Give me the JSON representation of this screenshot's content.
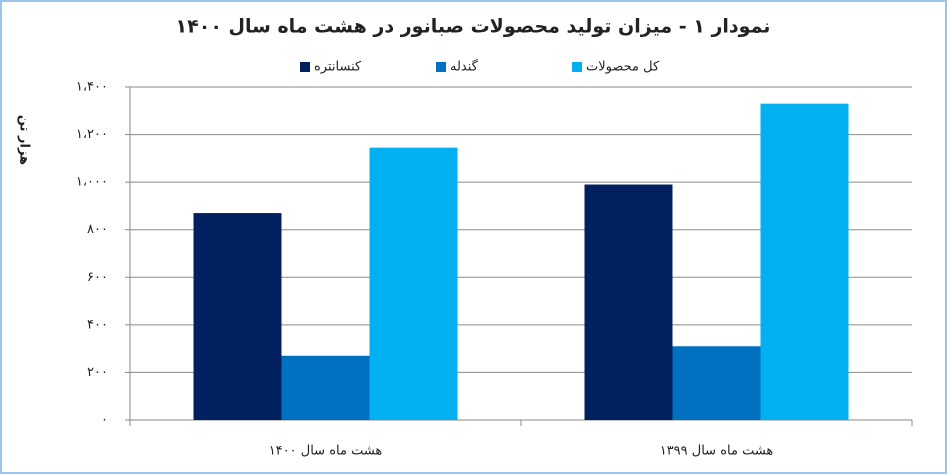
{
  "chart_data": {
    "type": "bar",
    "title": "نمودار ۱ - میزان تولید محصولات صبانور در هشت ماه سال ۱۴۰۰",
    "y_label": "هزار تن",
    "categories": [
      "هشت ماه سال ۱۴۰۰",
      "هشت ماه سال ۱۳۹۹"
    ],
    "series": [
      {
        "name": "کنسانتره",
        "color": "#002060",
        "values": [
          870,
          990
        ]
      },
      {
        "name": "گندله",
        "color": "#0070c0",
        "values": [
          270,
          310
        ]
      },
      {
        "name": "کل محصولات",
        "color": "#00b0f0",
        "values": [
          1145,
          1330
        ]
      }
    ],
    "ylim": [
      0,
      1400
    ],
    "yticks": [
      {
        "value": 0,
        "label": "۰"
      },
      {
        "value": 200,
        "label": "۲۰۰"
      },
      {
        "value": 400,
        "label": "۴۰۰"
      },
      {
        "value": 600,
        "label": "۶۰۰"
      },
      {
        "value": 800,
        "label": "۸۰۰"
      },
      {
        "value": 1000,
        "label": "۱،۰۰۰"
      },
      {
        "value": 1200,
        "label": "۱،۲۰۰"
      },
      {
        "value": 1400,
        "label": "۱،۴۰۰"
      }
    ],
    "grid": true
  }
}
